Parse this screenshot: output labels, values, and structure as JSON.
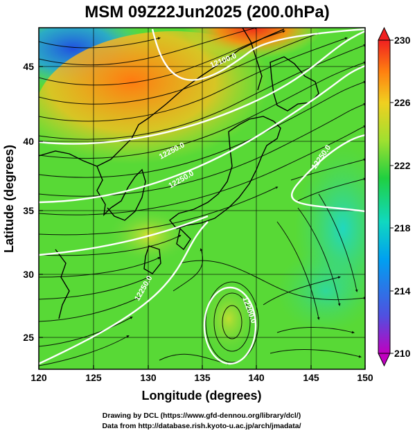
{
  "title": "MSM 09Z22Jun2025 (200.0hPa)",
  "xlabel": "Longitude (degrees)",
  "ylabel": "Latitude  (degrees)",
  "credits": [
    "Drawing by DCL (https://www.gfd-dennou.org/library/dcl/)",
    "Data from http://database.rish.kyoto-u.ac.jp/arch/jmadata/"
  ],
  "map": {
    "lon_range": [
      120,
      150
    ],
    "lat_range": [
      22.4,
      47.6
    ],
    "lon_ticks": [
      "120",
      "125",
      "130",
      "135",
      "140",
      "145",
      "150"
    ],
    "lat_ticks": [
      "25",
      "30",
      "35",
      "40",
      "45"
    ],
    "shading_variable": "temperature",
    "contour_variable": "geopotential height",
    "vector_variable": "wind streamlines",
    "contour_labels": [
      {
        "text": "12100.0"
      },
      {
        "text": "12250.0"
      },
      {
        "text": "12250.0"
      },
      {
        "text": "12250.0"
      },
      {
        "text": "12250.0"
      },
      {
        "text": "12200.0"
      }
    ]
  },
  "colorbar": {
    "min": 210,
    "max": 230,
    "tick_labels": [
      "230",
      "226",
      "222",
      "218",
      "214",
      "210"
    ],
    "colors": [
      "#c000c0",
      "#5050e0",
      "#00b0e0",
      "#20d8a0",
      "#30d030",
      "#b8e030",
      "#f0b020",
      "#ff7010",
      "#f02020"
    ]
  },
  "chart_data": {
    "type": "heatmap",
    "title": "MSM 09Z22Jun2025 (200.0hPa)",
    "xlabel": "Longitude (degrees)",
    "ylabel": "Latitude  (degrees)",
    "xlim": [
      120,
      150
    ],
    "ylim": [
      22.4,
      47.6
    ],
    "colorbar_range": [
      210,
      230
    ],
    "contour_levels": [
      12100,
      12200,
      12250
    ]
  }
}
